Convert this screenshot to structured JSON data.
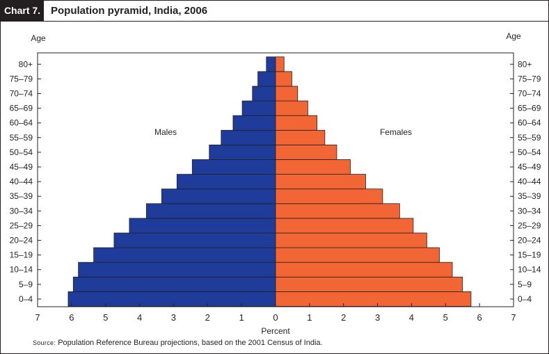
{
  "header": {
    "chart_label": "Chart 7.",
    "title": "Population pyramid, India, 2006"
  },
  "source": {
    "label": "Source:",
    "text": "Population Reference Bureau projections, based on the 2001 Census of India."
  },
  "colors": {
    "males": "#1f3c9a",
    "females": "#f26535",
    "ink": "#231f20"
  },
  "chart_data": {
    "type": "bar",
    "orientation": "horizontal",
    "title": "Population pyramid, India, 2006",
    "xlabel": "Percent",
    "ylabel_left": "Age",
    "ylabel_right": "Age",
    "xlim": [
      -7,
      7
    ],
    "x_ticks": [
      -7,
      -6,
      -5,
      -4,
      -3,
      -2,
      -1,
      0,
      1,
      2,
      3,
      4,
      5,
      6,
      7
    ],
    "x_tick_labels": [
      "7",
      "6",
      "5",
      "4",
      "3",
      "2",
      "1",
      "0",
      "1",
      "2",
      "3",
      "4",
      "5",
      "6",
      "7"
    ],
    "categories": [
      "0–4",
      "5–9",
      "10–14",
      "15–19",
      "20–24",
      "25–29",
      "30–34",
      "35–39",
      "40–44",
      "45–49",
      "50–54",
      "55–59",
      "60–64",
      "65–69",
      "70–74",
      "75–79",
      "80+"
    ],
    "series": [
      {
        "name": "Males",
        "side": "left",
        "values": [
          6.1,
          5.95,
          5.8,
          5.35,
          4.75,
          4.3,
          3.8,
          3.35,
          2.9,
          2.45,
          1.95,
          1.6,
          1.25,
          0.98,
          0.68,
          0.52,
          0.27
        ]
      },
      {
        "name": "Females",
        "side": "right",
        "values": [
          5.75,
          5.5,
          5.2,
          4.82,
          4.45,
          4.05,
          3.65,
          3.15,
          2.65,
          2.2,
          1.8,
          1.45,
          1.22,
          0.95,
          0.65,
          0.48,
          0.25
        ]
      }
    ],
    "legend": {
      "males_label": "Males",
      "females_label": "Females"
    }
  }
}
